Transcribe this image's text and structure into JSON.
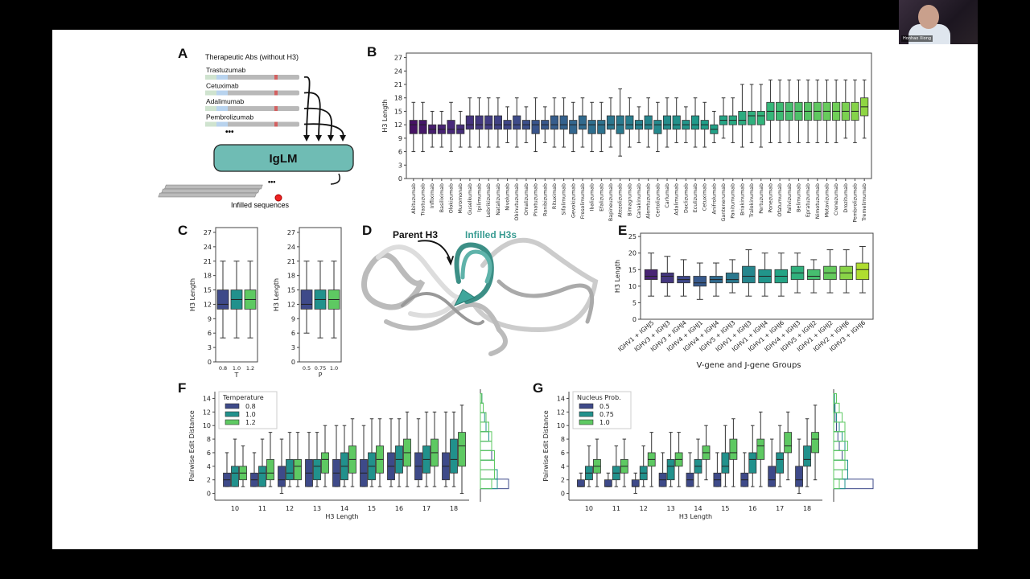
{
  "webcam": {
    "name": "Honhao Xiong"
  },
  "panels": {
    "A": {
      "label": "A",
      "title": "Therapeutic Abs (without H3)",
      "antibodies": [
        "Trastuzumab",
        "Cetuximab",
        "Adalimumab",
        "Pembrolizumab"
      ],
      "ellipsis": "•••",
      "model": "IgLM",
      "output": "Infilled sequences"
    },
    "B": {
      "label": "B"
    },
    "C": {
      "label": "C"
    },
    "D": {
      "label": "D",
      "parent": "Parent H3",
      "infilled": "Infilled H3s"
    },
    "E": {
      "label": "E"
    },
    "F": {
      "label": "F"
    },
    "G": {
      "label": "G"
    }
  },
  "colors": {
    "teal": "#6fbcb4",
    "group3": [
      "#3e4a89",
      "#21918c",
      "#5ec962"
    ],
    "viridis": [
      "#440154",
      "#482878",
      "#3e4989",
      "#31688e",
      "#26828e",
      "#1f9e89",
      "#35b779",
      "#6ece58",
      "#b5de2b",
      "#fde725"
    ]
  },
  "chart_data": [
    {
      "id": "B",
      "type": "box",
      "ylabel": "H3 Length",
      "ylim": [
        0,
        28
      ],
      "yticks": [
        0,
        3,
        6,
        9,
        12,
        15,
        18,
        21,
        24,
        27
      ],
      "stats_format": "[whisker_low, q1, median, q3, whisker_high]",
      "categories": [
        "Abituzumab",
        "Trastuzumab",
        "Infliximab",
        "Basiliximab",
        "Olokizumab",
        "Muromonab",
        "Guselkumab",
        "Ipilimumab",
        "Lebrikizumab",
        "Natalizumab",
        "Nivolumab",
        "Obinutuzumab",
        "Omalizumab",
        "Pinatuzumab",
        "Ranibizumab",
        "Rituximab",
        "Sifalimumab",
        "Gevokizumab",
        "Fresolimumab",
        "Ibalizumab",
        "Efalizumab",
        "Bapineuzumab",
        "Atezolizumab",
        "Bimagrumab",
        "Canakinumab",
        "Alemtuzumab",
        "Certolizumab",
        "Carlumab",
        "Adalimumab",
        "Daclizumab",
        "Eculizumab",
        "Cetuximab",
        "Anifrolumab",
        "Gantenerumab",
        "Panitumumab",
        "Briakinumab",
        "Tralokinumab",
        "Pertuzumab",
        "Ponezumab",
        "Ofatumumab",
        "Palivizumab",
        "Belimumab",
        "Epratuzumab",
        "Nimotuzumab",
        "Motavizumab",
        "Crenezumab",
        "Drozitumab",
        "Pembrolizumab",
        "Tremelimumab"
      ],
      "values": [
        [
          6,
          10,
          12,
          13,
          17
        ],
        [
          6,
          10,
          12,
          13,
          17
        ],
        [
          7,
          10,
          11,
          12,
          15
        ],
        [
          7,
          10,
          11,
          12,
          15
        ],
        [
          6,
          10,
          11,
          13,
          17
        ],
        [
          7,
          10,
          11,
          12,
          15
        ],
        [
          7,
          11,
          12,
          14,
          18
        ],
        [
          7,
          11,
          12,
          14,
          18
        ],
        [
          7,
          11,
          12,
          14,
          18
        ],
        [
          7,
          11,
          12,
          14,
          18
        ],
        [
          8,
          11,
          12,
          13,
          16
        ],
        [
          7,
          11,
          12,
          14,
          18
        ],
        [
          8,
          11,
          12,
          13,
          16
        ],
        [
          6,
          10,
          12,
          13,
          18
        ],
        [
          8,
          11,
          12,
          13,
          16
        ],
        [
          7,
          11,
          12,
          14,
          18
        ],
        [
          7,
          11,
          12,
          14,
          18
        ],
        [
          6,
          10,
          12,
          13,
          17
        ],
        [
          7,
          11,
          12,
          14,
          18
        ],
        [
          6,
          10,
          12,
          13,
          17
        ],
        [
          6,
          10,
          12,
          13,
          17
        ],
        [
          7,
          11,
          12,
          14,
          18
        ],
        [
          5,
          10,
          12,
          14,
          20
        ],
        [
          7,
          11,
          12,
          14,
          18
        ],
        [
          8,
          11,
          12,
          13,
          16
        ],
        [
          7,
          11,
          12,
          14,
          18
        ],
        [
          6,
          10,
          12,
          13,
          17
        ],
        [
          7,
          11,
          12,
          14,
          18
        ],
        [
          8,
          11,
          12,
          14,
          18
        ],
        [
          8,
          11,
          12,
          13,
          16
        ],
        [
          7,
          11,
          12,
          14,
          18
        ],
        [
          7,
          11,
          12,
          13,
          17
        ],
        [
          8,
          10,
          11,
          12,
          15
        ],
        [
          9,
          12,
          13,
          14,
          18
        ],
        [
          8,
          12,
          13,
          14,
          18
        ],
        [
          7,
          12,
          13,
          15,
          21
        ],
        [
          8,
          12,
          14,
          15,
          21
        ],
        [
          7,
          12,
          14,
          15,
          21
        ],
        [
          8,
          13,
          15,
          17,
          22
        ],
        [
          8,
          13,
          15,
          17,
          22
        ],
        [
          8,
          13,
          15,
          17,
          22
        ],
        [
          8,
          13,
          15,
          17,
          22
        ],
        [
          8,
          13,
          15,
          17,
          22
        ],
        [
          8,
          13,
          15,
          17,
          22
        ],
        [
          8,
          13,
          15,
          17,
          22
        ],
        [
          8,
          13,
          15,
          17,
          22
        ],
        [
          9,
          13,
          15,
          17,
          22
        ],
        [
          8,
          13,
          15,
          17,
          22
        ],
        [
          9,
          14,
          16,
          18,
          22
        ]
      ]
    },
    {
      "id": "C-T",
      "type": "box",
      "ylabel": "H3 Length",
      "xlabel": "T",
      "ylim": [
        0,
        28
      ],
      "yticks": [
        0,
        3,
        6,
        9,
        12,
        15,
        18,
        21,
        24,
        27
      ],
      "categories": [
        "0.8",
        "1.0",
        "1.2"
      ],
      "values": [
        [
          5,
          11,
          12,
          15,
          21
        ],
        [
          5,
          11,
          13,
          15,
          21
        ],
        [
          5,
          11,
          13,
          15,
          21
        ]
      ]
    },
    {
      "id": "C-P",
      "type": "box",
      "ylabel": "H3 Length",
      "xlabel": "P",
      "ylim": [
        0,
        28
      ],
      "yticks": [
        0,
        3,
        6,
        9,
        12,
        15,
        18,
        21,
        24,
        27
      ],
      "categories": [
        "0.5",
        "0.75",
        "1.0"
      ],
      "values": [
        [
          6,
          11,
          12,
          15,
          21
        ],
        [
          5,
          11,
          13,
          15,
          21
        ],
        [
          5,
          11,
          13,
          15,
          21
        ]
      ]
    },
    {
      "id": "E",
      "type": "box",
      "ylabel": "H3 Length",
      "xlabel": "V-gene and J-gene Groups",
      "ylim": [
        0,
        26
      ],
      "yticks": [
        0,
        5,
        10,
        15,
        20,
        25
      ],
      "categories": [
        "IGHV1 + IGHJ5",
        "IGHV3 + IGHJ3",
        "IGHV3 + IGHJ4",
        "IGHV4 + IGHJ1",
        "IGHV4 + IGHJ4",
        "IGHV5 + IGHJ3",
        "IGHV1 + IGHJ3",
        "IGHV1 + IGHJ4",
        "IGHV1 + IGHJ6",
        "IGHV4 + IGHJ3",
        "IGHV5 + IGHJ2",
        "IGHV1 + IGHJ2",
        "IGHV2 + IGHJ6",
        "IGHV3 + IGHJ6"
      ],
      "values": [
        [
          7,
          12,
          13,
          15,
          20
        ],
        [
          7,
          11,
          13,
          14,
          19
        ],
        [
          7,
          11,
          12,
          13,
          18
        ],
        [
          6,
          10,
          11,
          13,
          17
        ],
        [
          7,
          11,
          12,
          13,
          17
        ],
        [
          8,
          11,
          12,
          14,
          18
        ],
        [
          7,
          11,
          13,
          16,
          21
        ],
        [
          7,
          11,
          13,
          15,
          20
        ],
        [
          7,
          11,
          13,
          15,
          20
        ],
        [
          8,
          12,
          14,
          16,
          20
        ],
        [
          8,
          12,
          13,
          15,
          18
        ],
        [
          8,
          12,
          14,
          16,
          21
        ],
        [
          8,
          12,
          14,
          16,
          21
        ],
        [
          8,
          12,
          15,
          17,
          22
        ]
      ]
    },
    {
      "id": "F",
      "type": "box",
      "ylabel": "Pairwise Edit Distance",
      "xlabel": "H3 Length",
      "ylim": [
        -1,
        15
      ],
      "yticks": [
        0,
        2,
        4,
        6,
        8,
        10,
        12,
        14
      ],
      "legend_title": "Temperature",
      "legend": "top-left",
      "categories": [
        "10",
        "11",
        "12",
        "13",
        "14",
        "15",
        "16",
        "17",
        "18"
      ],
      "series": [
        {
          "name": "0.8",
          "values": [
            [
              1,
              1,
              2,
              3,
              6
            ],
            [
              1,
              1,
              2,
              3,
              6
            ],
            [
              0,
              1,
              2,
              4,
              8
            ],
            [
              1,
              1,
              3,
              5,
              9
            ],
            [
              1,
              1,
              3,
              5,
              10
            ],
            [
              1,
              1,
              3,
              5,
              10
            ],
            [
              1,
              2,
              4,
              6,
              11
            ],
            [
              1,
              2,
              4,
              6,
              11
            ],
            [
              1,
              2,
              4,
              6,
              12
            ]
          ]
        },
        {
          "name": "1.0",
          "values": [
            [
              1,
              1,
              3,
              4,
              8
            ],
            [
              1,
              1,
              3,
              4,
              8
            ],
            [
              1,
              2,
              3,
              5,
              9
            ],
            [
              1,
              2,
              4,
              5,
              9
            ],
            [
              1,
              2,
              4,
              6,
              10
            ],
            [
              1,
              2,
              4,
              6,
              11
            ],
            [
              1,
              3,
              5,
              7,
              11
            ],
            [
              1,
              3,
              5,
              7,
              12
            ],
            [
              1,
              3,
              5,
              8,
              12
            ]
          ]
        },
        {
          "name": "1.2",
          "values": [
            [
              1,
              2,
              3,
              4,
              7
            ],
            [
              1,
              2,
              3,
              5,
              9
            ],
            [
              1,
              2,
              4,
              5,
              9
            ],
            [
              1,
              3,
              5,
              6,
              10
            ],
            [
              1,
              3,
              5,
              7,
              11
            ],
            [
              1,
              3,
              5,
              7,
              11
            ],
            [
              1,
              4,
              6,
              8,
              12
            ],
            [
              1,
              4,
              6,
              8,
              12
            ],
            [
              0,
              4,
              7,
              9,
              13
            ]
          ]
        }
      ],
      "marginal_hist": [
        [
          10,
          6,
          5,
          4,
          4,
          3,
          3,
          2,
          1,
          0.5
        ],
        [
          6,
          6,
          5,
          5,
          4,
          3,
          2,
          1.5,
          1,
          0.5
        ],
        [
          4,
          5,
          5,
          5,
          4,
          4,
          3,
          2,
          1,
          0.5
        ]
      ]
    },
    {
      "id": "G",
      "type": "box",
      "ylabel": "Pairwise Edit Distance",
      "xlabel": "H3 Length",
      "ylim": [
        -1,
        15
      ],
      "yticks": [
        0,
        2,
        4,
        6,
        8,
        10,
        12,
        14
      ],
      "legend_title": "Nucleus Prob.",
      "legend": "top-left",
      "categories": [
        "10",
        "11",
        "12",
        "13",
        "14",
        "15",
        "16",
        "17",
        "18"
      ],
      "series": [
        {
          "name": "0.5",
          "values": [
            [
              1,
              1,
              1,
              2,
              3
            ],
            [
              1,
              1,
              1,
              2,
              3
            ],
            [
              0,
              1,
              1,
              2,
              3
            ],
            [
              1,
              1,
              2,
              3,
              6
            ],
            [
              1,
              1,
              2,
              3,
              6
            ],
            [
              1,
              1,
              2,
              3,
              6
            ],
            [
              1,
              1,
              2,
              3,
              6
            ],
            [
              1,
              1,
              2,
              4,
              8
            ],
            [
              0,
              1,
              2,
              4,
              8
            ]
          ]
        },
        {
          "name": "0.75",
          "values": [
            [
              1,
              2,
              3,
              4,
              7
            ],
            [
              1,
              2,
              3,
              4,
              7
            ],
            [
              1,
              2,
              3,
              4,
              7
            ],
            [
              1,
              2,
              4,
              5,
              9
            ],
            [
              1,
              3,
              4,
              5,
              8
            ],
            [
              1,
              3,
              4,
              6,
              10
            ],
            [
              1,
              3,
              5,
              6,
              10
            ],
            [
              1,
              3,
              5,
              6,
              10
            ],
            [
              1,
              4,
              5,
              7,
              11
            ]
          ]
        },
        {
          "name": "1.0",
          "values": [
            [
              1,
              3,
              4,
              5,
              8
            ],
            [
              1,
              3,
              4,
              5,
              8
            ],
            [
              1,
              4,
              5,
              6,
              9
            ],
            [
              1,
              4,
              5,
              6,
              9
            ],
            [
              2,
              5,
              6,
              7,
              10
            ],
            [
              1,
              5,
              6,
              8,
              11
            ],
            [
              1,
              5,
              7,
              8,
              12
            ],
            [
              2,
              6,
              7,
              9,
              12
            ],
            [
              2,
              6,
              8,
              9,
              13
            ]
          ]
        }
      ],
      "marginal_hist": [
        [
          14,
          5,
          4,
          3,
          2,
          1.5,
          1,
          0.5,
          0.3,
          0.2
        ],
        [
          4,
          5,
          5,
          4,
          4,
          3,
          2,
          1,
          0.5,
          0.3
        ],
        [
          2,
          3,
          4,
          4,
          5,
          4,
          4,
          3,
          2,
          1
        ]
      ]
    }
  ]
}
